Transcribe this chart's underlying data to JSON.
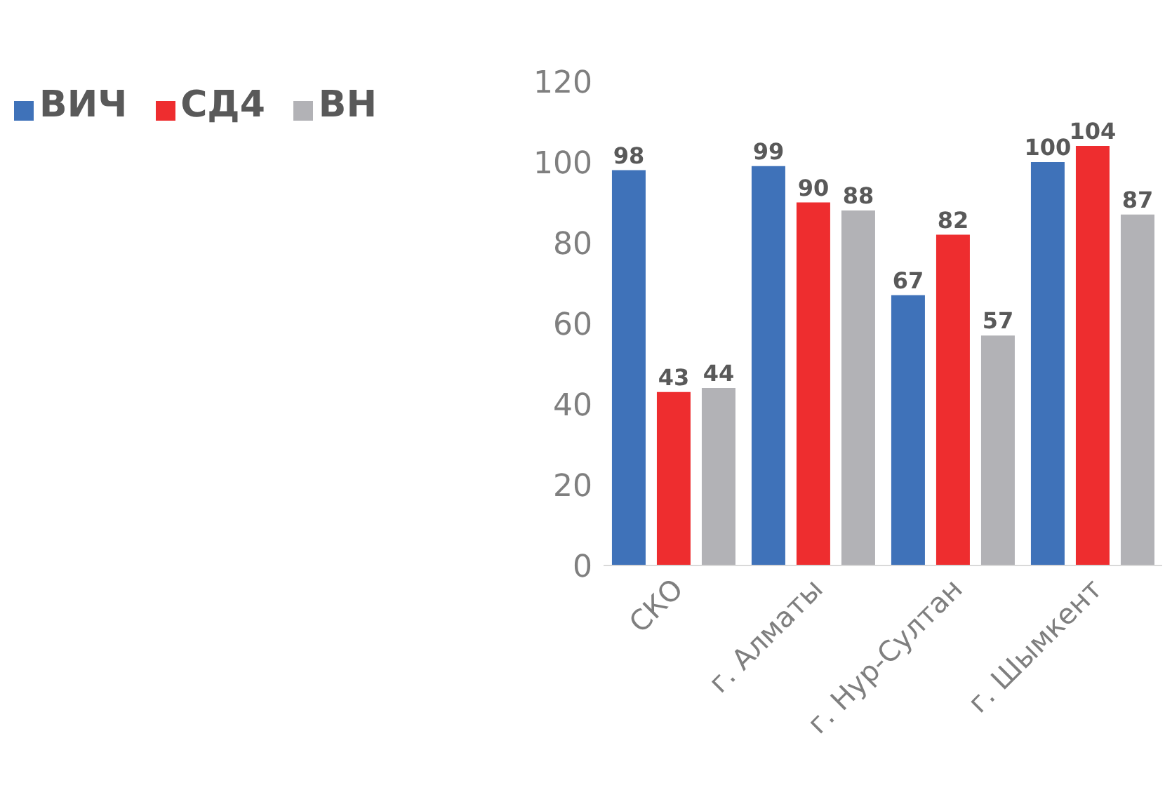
{
  "chart_data": {
    "type": "bar",
    "categories": [
      "СКО",
      "г. Алматы",
      "г. Нур-Султан",
      "г. Шымкент"
    ],
    "series": [
      {
        "name": "ВИЧ",
        "color": "#3f72b9",
        "values": [
          98,
          99,
          67,
          100
        ]
      },
      {
        "name": "СД4",
        "color": "#ee2d2f",
        "values": [
          43,
          90,
          82,
          104
        ]
      },
      {
        "name": "ВН",
        "color": "#b2b2b6",
        "values": [
          44,
          88,
          57,
          87
        ]
      }
    ],
    "ylim": [
      0,
      120
    ],
    "yticks": [
      0,
      20,
      40,
      60,
      80,
      100,
      120
    ],
    "grid": false,
    "legend": "top left",
    "data_labels": true
  }
}
